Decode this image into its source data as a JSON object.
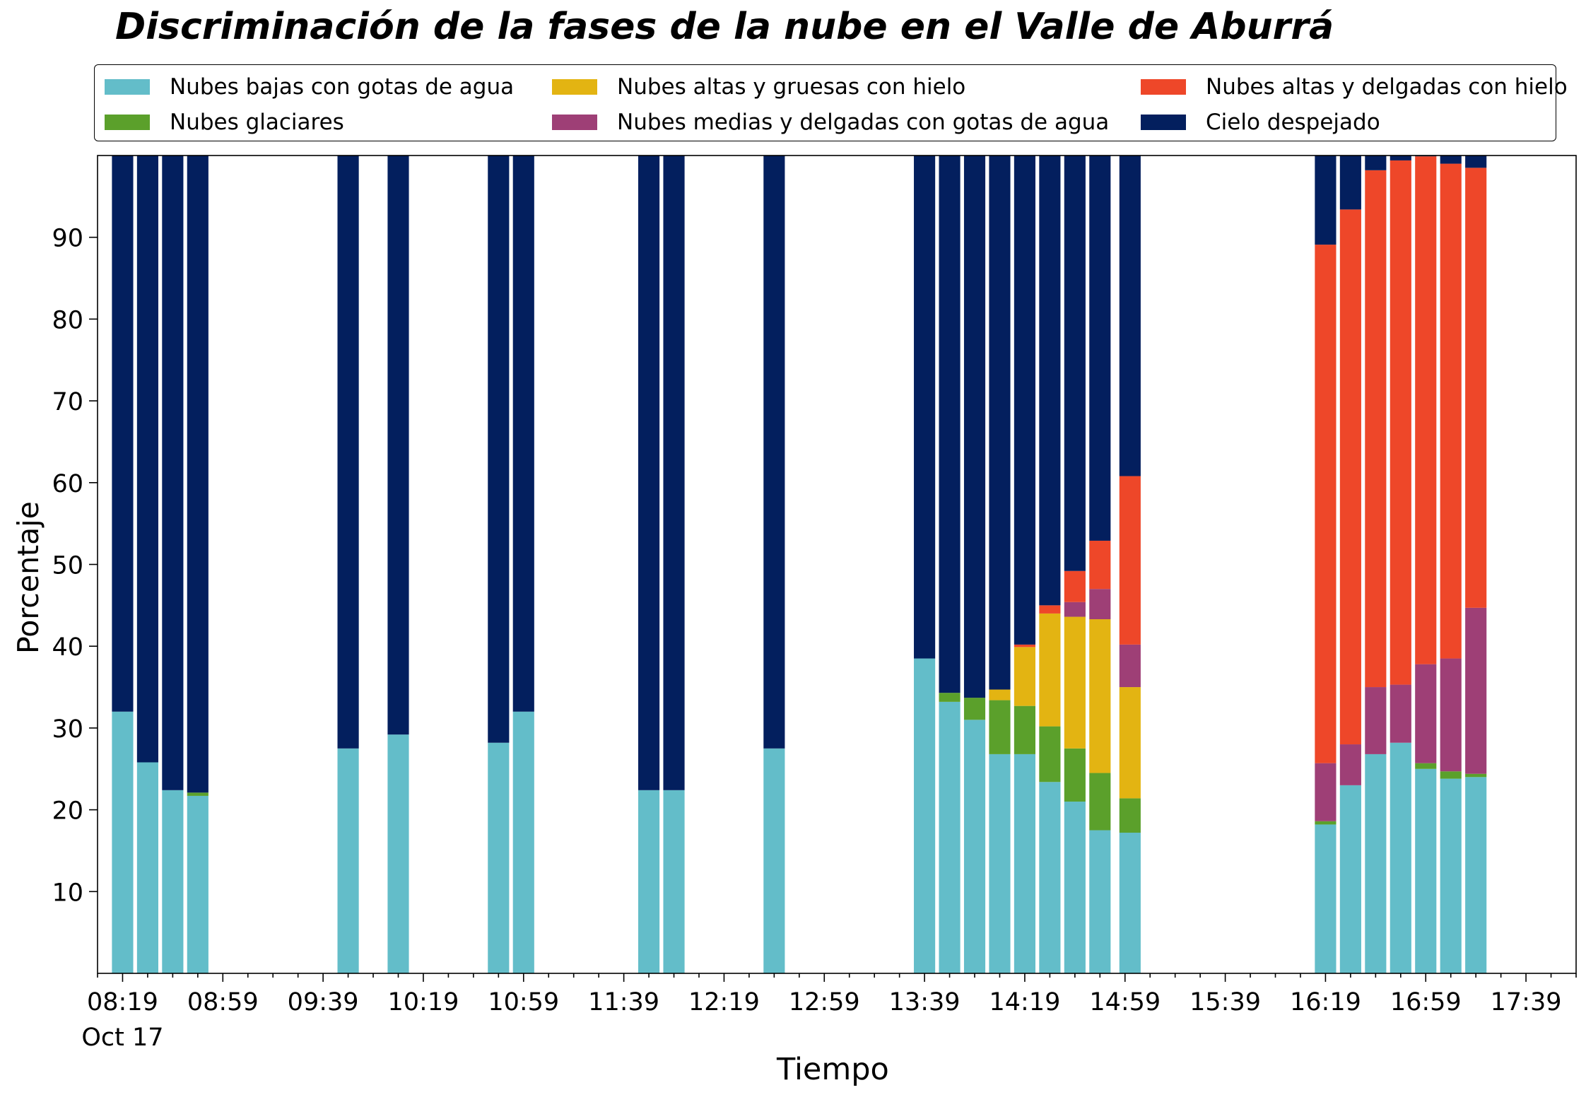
{
  "chart_data": {
    "type": "bar",
    "stacked": true,
    "title": "Discriminación de la fases de la nube en el Valle de Aburrá",
    "xlabel": "Tiempo",
    "ylabel": "Porcentaje",
    "date_label": "Oct 17",
    "ylim": [
      0,
      100
    ],
    "y_ticks": [
      10,
      20,
      30,
      40,
      50,
      60,
      70,
      80,
      90
    ],
    "x_ticks": [
      "08:19",
      "08:59",
      "09:39",
      "10:19",
      "10:59",
      "11:39",
      "12:19",
      "12:59",
      "13:39",
      "14:19",
      "14:59",
      "15:39",
      "16:19",
      "16:59",
      "17:39"
    ],
    "x_range": [
      "08:09",
      "17:59"
    ],
    "bar_width_minutes": 8.5,
    "grid": false,
    "legend_placement": "top",
    "times": [
      "08:19",
      "08:29",
      "08:39",
      "08:49",
      "09:49",
      "10:09",
      "10:49",
      "10:59",
      "11:49",
      "11:59",
      "12:39",
      "13:39",
      "13:49",
      "13:59",
      "14:09",
      "14:19",
      "14:29",
      "14:39",
      "14:49",
      "15:01",
      "16:19",
      "16:29",
      "16:39",
      "16:49",
      "16:59",
      "17:09",
      "17:19"
    ],
    "series": [
      {
        "name": "Nubes bajas con gotas de agua",
        "color": "#63bdc9",
        "values": [
          32.0,
          25.8,
          22.4,
          21.7,
          27.5,
          29.2,
          28.2,
          32.0,
          22.4,
          22.4,
          27.5,
          38.5,
          33.2,
          31.0,
          26.8,
          26.8,
          23.4,
          21.0,
          17.5,
          17.2,
          18.2,
          23.0,
          26.8,
          28.2,
          25.0,
          23.8,
          24.0
        ]
      },
      {
        "name": "Nubes glaciares",
        "color": "#5ba02b",
        "values": [
          0,
          0,
          0,
          0.4,
          0,
          0,
          0,
          0,
          0,
          0,
          0,
          0,
          1.1,
          2.7,
          6.6,
          5.9,
          6.8,
          6.5,
          7.0,
          4.2,
          0.4,
          0,
          0,
          0,
          0.7,
          0.9,
          0.4
        ]
      },
      {
        "name": "Nubes altas y gruesas con hielo",
        "color": "#e3b412",
        "values": [
          0,
          0,
          0,
          0,
          0,
          0,
          0,
          0,
          0,
          0,
          0,
          0,
          0,
          0,
          1.3,
          7.2,
          13.8,
          16.1,
          18.8,
          13.6,
          0,
          0,
          0,
          0,
          0,
          0,
          0
        ]
      },
      {
        "name": "Nubes medias y delgadas con gotas de agua",
        "color": "#9e3f76",
        "values": [
          0,
          0,
          0,
          0,
          0,
          0,
          0,
          0,
          0,
          0,
          0,
          0,
          0,
          0,
          0,
          0,
          0,
          1.8,
          3.7,
          5.2,
          7.1,
          5.0,
          8.2,
          7.1,
          12.1,
          13.8,
          20.3
        ]
      },
      {
        "name": "Nubes altas y delgadas con hielo",
        "color": "#ee4729",
        "values": [
          0,
          0,
          0,
          0,
          0,
          0,
          0,
          0,
          0,
          0,
          0,
          0,
          0,
          0,
          0,
          0.3,
          1.0,
          3.8,
          5.9,
          20.6,
          63.4,
          65.4,
          63.2,
          64.1,
          62.1,
          60.5,
          53.8
        ]
      },
      {
        "name": "Cielo despejado",
        "color": "#031f5e",
        "values": [
          68.0,
          74.2,
          77.6,
          77.9,
          72.5,
          70.8,
          71.8,
          68.0,
          77.6,
          77.6,
          72.5,
          61.5,
          65.7,
          66.3,
          65.3,
          59.8,
          55.0,
          50.8,
          47.1,
          39.2,
          10.9,
          6.6,
          1.8,
          0.6,
          0.1,
          1.0,
          1.5
        ]
      }
    ]
  }
}
